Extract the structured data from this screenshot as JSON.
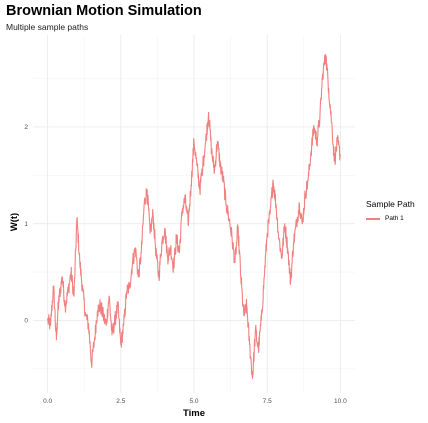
{
  "chart_data": {
    "type": "line",
    "title": "Brownian Motion Simulation",
    "subtitle": "Multiple sample paths",
    "xlabel": "Time",
    "ylabel": "W(t)",
    "xlim": [
      -0.5,
      10.5
    ],
    "ylim": [
      -0.75,
      2.95
    ],
    "x_ticks": [
      0.0,
      2.5,
      5.0,
      7.5,
      10.0
    ],
    "x_tick_labels": [
      "0.0",
      "2.5",
      "5.0",
      "7.5",
      "10.0"
    ],
    "y_ticks": [
      0,
      1,
      2
    ],
    "y_tick_labels": [
      "0",
      "1",
      "2"
    ],
    "grid": true,
    "legend_title": "Sample Path",
    "legend_position": "right",
    "colors": {
      "Path 1": "#f08080"
    },
    "series": [
      {
        "name": "Path 1",
        "x": [
          0.0,
          0.1,
          0.2,
          0.3,
          0.35,
          0.4,
          0.5,
          0.6,
          0.7,
          0.8,
          0.9,
          1.0,
          1.1,
          1.2,
          1.3,
          1.4,
          1.5,
          1.6,
          1.7,
          1.8,
          1.9,
          2.0,
          2.1,
          2.2,
          2.3,
          2.4,
          2.5,
          2.6,
          2.7,
          2.8,
          2.9,
          3.0,
          3.1,
          3.2,
          3.3,
          3.4,
          3.5,
          3.6,
          3.7,
          3.8,
          3.9,
          4.0,
          4.1,
          4.2,
          4.3,
          4.4,
          4.5,
          4.6,
          4.7,
          4.8,
          4.9,
          5.0,
          5.1,
          5.2,
          5.3,
          5.4,
          5.5,
          5.6,
          5.7,
          5.8,
          5.9,
          6.0,
          6.1,
          6.2,
          6.3,
          6.4,
          6.5,
          6.6,
          6.7,
          6.8,
          6.9,
          7.0,
          7.1,
          7.2,
          7.3,
          7.4,
          7.5,
          7.6,
          7.7,
          7.8,
          7.9,
          8.0,
          8.1,
          8.2,
          8.3,
          8.4,
          8.5,
          8.6,
          8.7,
          8.8,
          8.9,
          9.0,
          9.1,
          9.2,
          9.3,
          9.4,
          9.5,
          9.6,
          9.7,
          9.8,
          9.9,
          10.0
        ],
        "y": [
          0.0,
          -0.05,
          0.35,
          -0.2,
          0.1,
          0.25,
          0.45,
          0.15,
          0.3,
          0.5,
          0.25,
          1.05,
          0.6,
          0.3,
          0.05,
          -0.05,
          -0.45,
          -0.2,
          0.1,
          0.15,
          0.05,
          -0.05,
          0.25,
          -0.15,
          0.0,
          0.15,
          -0.25,
          -0.05,
          0.3,
          0.35,
          0.6,
          0.75,
          0.45,
          0.7,
          1.2,
          1.35,
          0.9,
          1.1,
          0.7,
          0.45,
          0.8,
          0.95,
          0.65,
          0.75,
          0.55,
          0.85,
          0.7,
          1.15,
          1.25,
          1.0,
          1.4,
          1.85,
          1.6,
          1.35,
          1.6,
          1.85,
          2.15,
          1.75,
          1.55,
          1.85,
          1.6,
          1.45,
          1.2,
          1.05,
          0.85,
          0.6,
          0.95,
          0.45,
          0.05,
          0.15,
          -0.25,
          -0.6,
          -0.1,
          -0.3,
          0.0,
          0.45,
          0.9,
          1.1,
          1.45,
          1.2,
          0.85,
          0.65,
          1.0,
          0.75,
          0.4,
          0.8,
          1.0,
          1.2,
          1.0,
          1.3,
          1.45,
          1.75,
          2.0,
          1.85,
          2.1,
          2.55,
          2.75,
          2.4,
          2.05,
          1.65,
          1.85,
          1.7
        ]
      }
    ]
  }
}
